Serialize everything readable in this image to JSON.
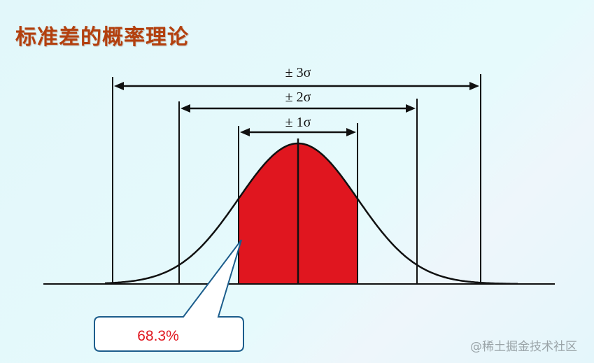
{
  "slide": {
    "title": "标准差的概率理论",
    "watermark": "@稀土掘金技术社区"
  },
  "diagram": {
    "type": "normal-distribution",
    "intervals": [
      {
        "label": "± 3σ",
        "k": 3
      },
      {
        "label": "± 2σ",
        "k": 2
      },
      {
        "label": "± 1σ",
        "k": 1
      }
    ],
    "shaded_interval_k": 1,
    "callout": "68.3%",
    "colors": {
      "fill": "#e0161f",
      "callout_border": "#1c5d8c",
      "callout_text": "#e0161f",
      "title": "#b3400e"
    }
  }
}
